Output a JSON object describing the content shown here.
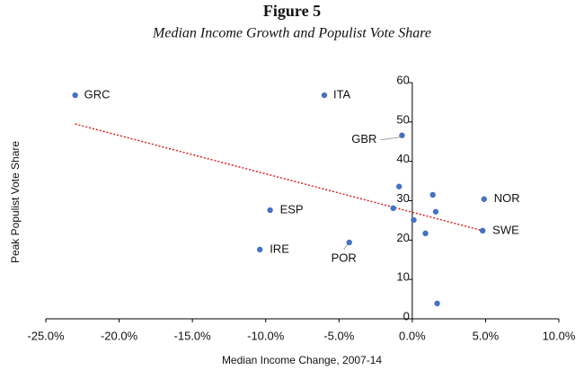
{
  "chart_data": {
    "type": "scatter",
    "title": "Figure 5",
    "subtitle": "Median Income Growth and Populist Vote Share",
    "x_label": "Median Income Change, 2007-14",
    "y_label": "Peak Populist Vote Share",
    "color": "#4472c4",
    "x": [
      -23.0,
      -6.0,
      -0.7,
      -0.9,
      -1.3,
      0.1,
      0.9,
      1.4,
      1.6,
      1.7,
      4.9,
      4.8,
      -9.7,
      -10.4,
      -4.3
    ],
    "values": [
      56.8,
      56.8,
      46.6,
      33.6,
      28.1,
      25.1,
      21.7,
      31.5,
      27.2,
      3.9,
      30.4,
      22.4,
      27.6,
      17.6,
      19.4
    ],
    "point_labels": [
      "GRC",
      "ITA",
      "GBR",
      null,
      null,
      null,
      null,
      null,
      null,
      null,
      "NOR",
      "SWE",
      "ESP",
      "IRE",
      "POR"
    ],
    "trendline": {
      "x": [
        -23.0,
        4.8
      ],
      "y": [
        49.5,
        22.4
      ],
      "color": "#e02020"
    },
    "xlim": [
      -25,
      10
    ],
    "xticks": [
      {
        "value": -25,
        "label": "-25.0%"
      },
      {
        "value": -20,
        "label": "-20.0%"
      },
      {
        "value": -15,
        "label": "-15.0%"
      },
      {
        "value": -10,
        "label": "-10.0%"
      },
      {
        "value": -5,
        "label": "-5.0%"
      },
      {
        "value": 0,
        "label": "0.0%"
      },
      {
        "value": 5,
        "label": "5.0%"
      },
      {
        "value": 10,
        "label": "10.0%"
      }
    ],
    "ylim": [
      0,
      60
    ],
    "yticks": [
      0,
      10,
      20,
      30,
      40,
      50,
      60
    ]
  }
}
